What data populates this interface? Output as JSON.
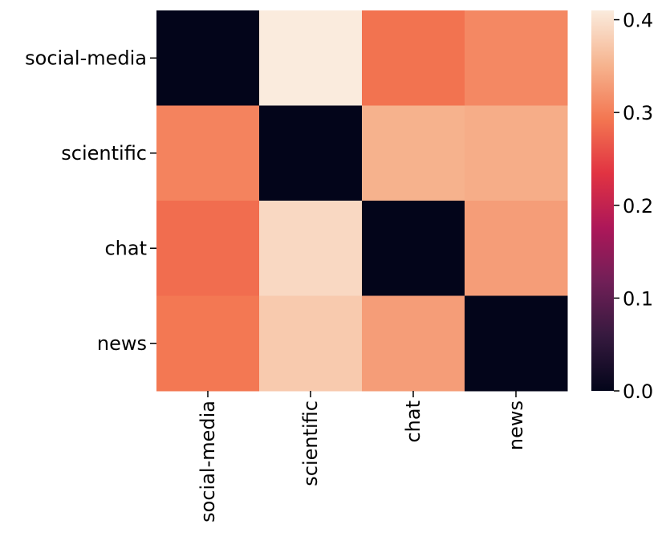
{
  "chart_data": {
    "type": "heatmap",
    "title": "",
    "xlabel": "",
    "ylabel": "",
    "x_categories": [
      "social-media",
      "scientific",
      "chat",
      "news"
    ],
    "y_categories": [
      "social-media",
      "scientific",
      "chat",
      "news"
    ],
    "values": [
      [
        0.0,
        0.41,
        0.29,
        0.31
      ],
      [
        0.305,
        0.0,
        0.35,
        0.345
      ],
      [
        0.285,
        0.39,
        0.0,
        0.33
      ],
      [
        0.295,
        0.375,
        0.33,
        0.0
      ]
    ],
    "colorbar": {
      "min": 0.0,
      "max": 0.41,
      "ticks": [
        "0.0",
        "0.1",
        "0.2",
        "0.3",
        "0.4"
      ],
      "tick_values": [
        0.0,
        0.1,
        0.2,
        0.3,
        0.4
      ]
    },
    "colormap": [
      "#03051a",
      "#35193e",
      "#701f57",
      "#ad1759",
      "#e13342",
      "#f37651",
      "#f6b48f",
      "#faebdd"
    ],
    "grid": false,
    "legend": "colorbar-right"
  }
}
